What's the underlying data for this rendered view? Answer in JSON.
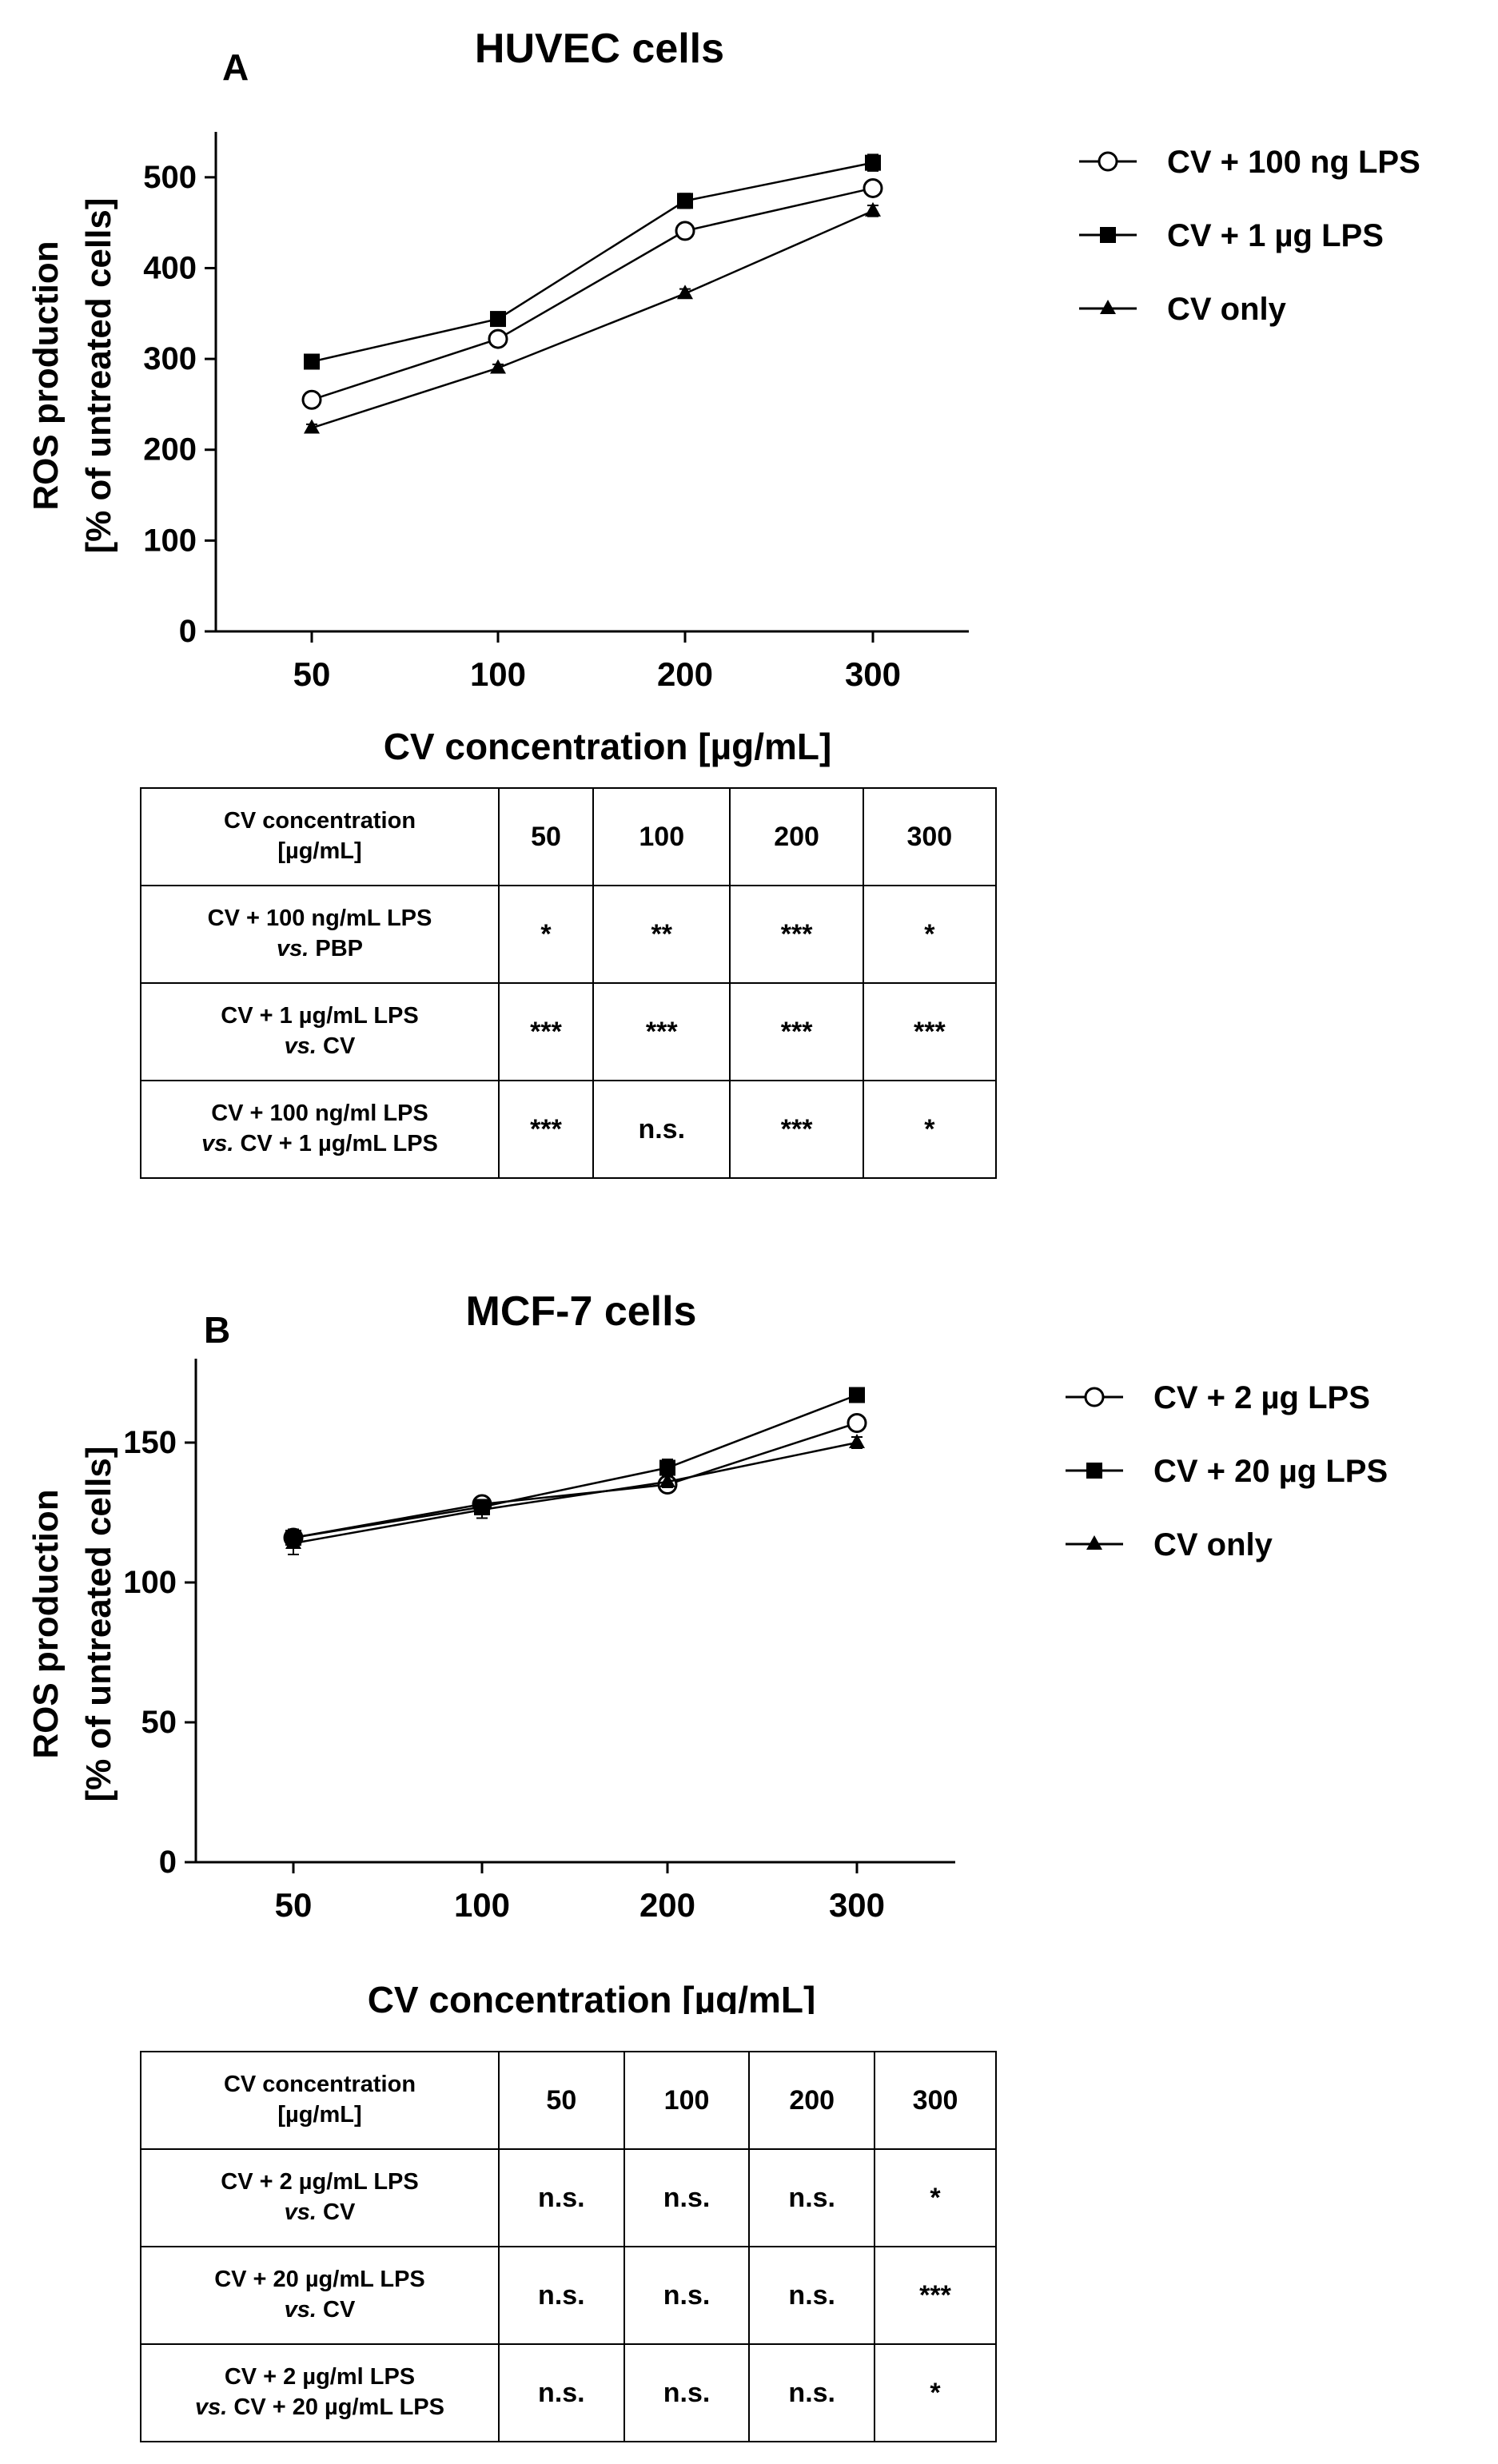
{
  "chart_data": [
    {
      "type": "line",
      "panel_label": "A",
      "title": "HUVEC cells",
      "xlabel": "CV concentration [µg/mL]",
      "ylabel_line1": "ROS production",
      "ylabel_line2": "[% of untreated cells]",
      "categories": [
        "50",
        "100",
        "200",
        "300"
      ],
      "ylim": [
        0,
        550
      ],
      "yticks": [
        0,
        100,
        200,
        300,
        400,
        500
      ],
      "series": [
        {
          "name": "CV + 100 ng LPS",
          "marker": "open-circle",
          "values": [
            255,
            322,
            441,
            488
          ],
          "errors": [
            6,
            6,
            7,
            8
          ]
        },
        {
          "name": "CV + 1 µg LPS",
          "marker": "filled-square",
          "values": [
            297,
            344,
            474,
            516
          ],
          "errors": [
            5,
            5,
            8,
            9
          ]
        },
        {
          "name": "CV only",
          "marker": "filled-triangle",
          "values": [
            224,
            290,
            372,
            463
          ],
          "errors": [
            4,
            4,
            5,
            6
          ]
        }
      ]
    },
    {
      "type": "line",
      "panel_label": "B",
      "title": "MCF-7 cells",
      "xlabel": "CV concentration [µg/mL]",
      "ylabel_line1": "ROS production",
      "ylabel_line2": "[% of untreated cells]",
      "categories": [
        "50",
        "100",
        "200",
        "300"
      ],
      "ylim": [
        0,
        180
      ],
      "yticks": [
        0,
        50,
        100,
        150
      ],
      "series": [
        {
          "name": "CV + 2 µg LPS",
          "marker": "open-circle",
          "values": [
            116,
            128,
            135,
            157
          ],
          "errors": [
            2,
            2,
            2,
            2
          ]
        },
        {
          "name": "CV + 20 µg LPS",
          "marker": "filled-square",
          "values": [
            116,
            127,
            141,
            167
          ],
          "errors": [
            3,
            2,
            3,
            2
          ]
        },
        {
          "name": "CV only",
          "marker": "filled-triangle",
          "values": [
            114,
            126,
            136,
            150
          ],
          "errors": [
            4,
            3,
            2,
            2
          ]
        }
      ]
    }
  ],
  "tables": {
    "a": {
      "header_line1": "CV concentration",
      "header_line2": "[µg/mL]",
      "columns": [
        "50",
        "100",
        "200",
        "300"
      ],
      "rows": [
        {
          "line1": "CV + 100 ng/mL LPS",
          "vs": "vs.",
          "line2": "PBP",
          "cells": [
            "*",
            "**",
            "***",
            "*"
          ]
        },
        {
          "line1": "CV + 1 µg/mL LPS",
          "vs": "vs.",
          "line2": "CV",
          "cells": [
            "***",
            "***",
            "***",
            "***"
          ]
        },
        {
          "line1": "CV + 100 ng/ml LPS",
          "vs": "vs.",
          "line2": "CV + 1 µg/mL LPS",
          "cells": [
            "***",
            "n.s.",
            "***",
            "*"
          ]
        }
      ]
    },
    "b": {
      "header_line1": "CV concentration",
      "header_line2": "[µg/mL]",
      "columns": [
        "50",
        "100",
        "200",
        "300"
      ],
      "rows": [
        {
          "line1": "CV + 2 µg/mL LPS",
          "vs": "vs.",
          "line2": "CV",
          "cells": [
            "n.s.",
            "n.s.",
            "n.s.",
            "*"
          ]
        },
        {
          "line1": "CV + 20 µg/mL LPS",
          "vs": "vs.",
          "line2": "CV",
          "cells": [
            "n.s.",
            "n.s.",
            "n.s.",
            "***"
          ]
        },
        {
          "line1": "CV + 2 µg/ml LPS",
          "vs": "vs.",
          "line2": "CV + 20 µg/mL LPS",
          "cells": [
            "n.s.",
            "n.s.",
            "n.s.",
            "*"
          ]
        }
      ]
    }
  }
}
